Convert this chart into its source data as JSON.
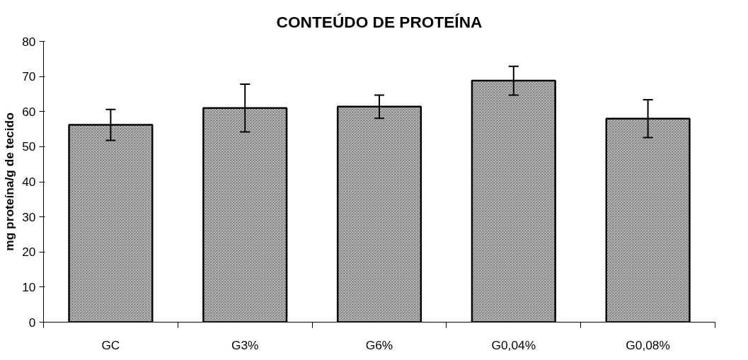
{
  "chart_data": {
    "type": "bar",
    "title": "CONTEÚDO DE PROTEÍNA",
    "ylabel": "mg proteína/g de tecido",
    "categories": [
      "GC",
      "G3%",
      "G6%",
      "G0,04%",
      "G0,08%"
    ],
    "values": [
      56.2,
      61,
      61.4,
      68.8,
      58
    ],
    "errors": [
      4.4,
      6.8,
      3.3,
      4.1,
      5.4
    ],
    "color": "#b8b8b8",
    "ylim": [
      0,
      80
    ],
    "yticks": [
      0,
      10,
      20,
      30,
      40,
      50,
      60,
      70,
      80
    ],
    "grid": false
  }
}
